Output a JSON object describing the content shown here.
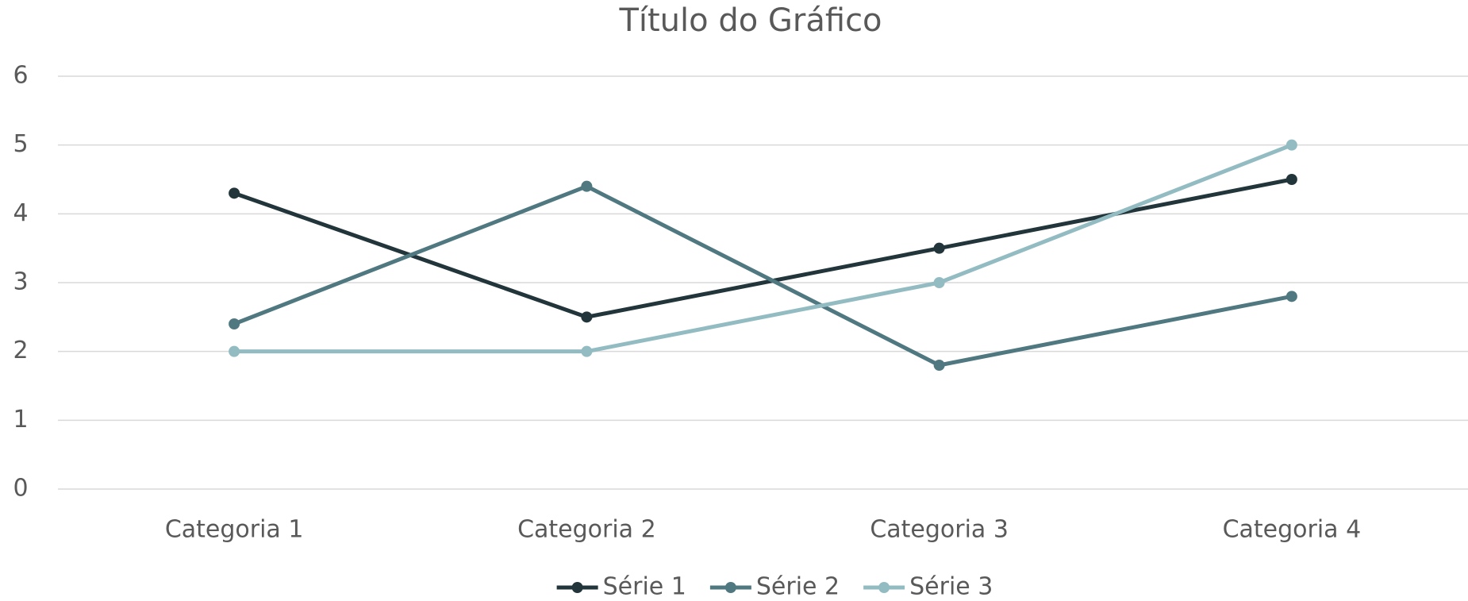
{
  "chart_data": {
    "type": "line",
    "title": "Título do Gráfico",
    "categories": [
      "Categoria 1",
      "Categoria 2",
      "Categoria 3",
      "Categoria 4"
    ],
    "series": [
      {
        "name": "Série 1",
        "color": "#22353a",
        "values": [
          4.3,
          2.5,
          3.5,
          4.5
        ]
      },
      {
        "name": "Série 2",
        "color": "#4f7880",
        "values": [
          2.4,
          4.4,
          1.8,
          2.8
        ]
      },
      {
        "name": "Série 3",
        "color": "#93bcc2",
        "values": [
          2,
          2,
          3,
          5
        ]
      }
    ],
    "ylim": [
      0,
      6
    ],
    "yticks": [
      0,
      1,
      2,
      3,
      4,
      5,
      6
    ],
    "grid": true,
    "legend": "bottom"
  }
}
